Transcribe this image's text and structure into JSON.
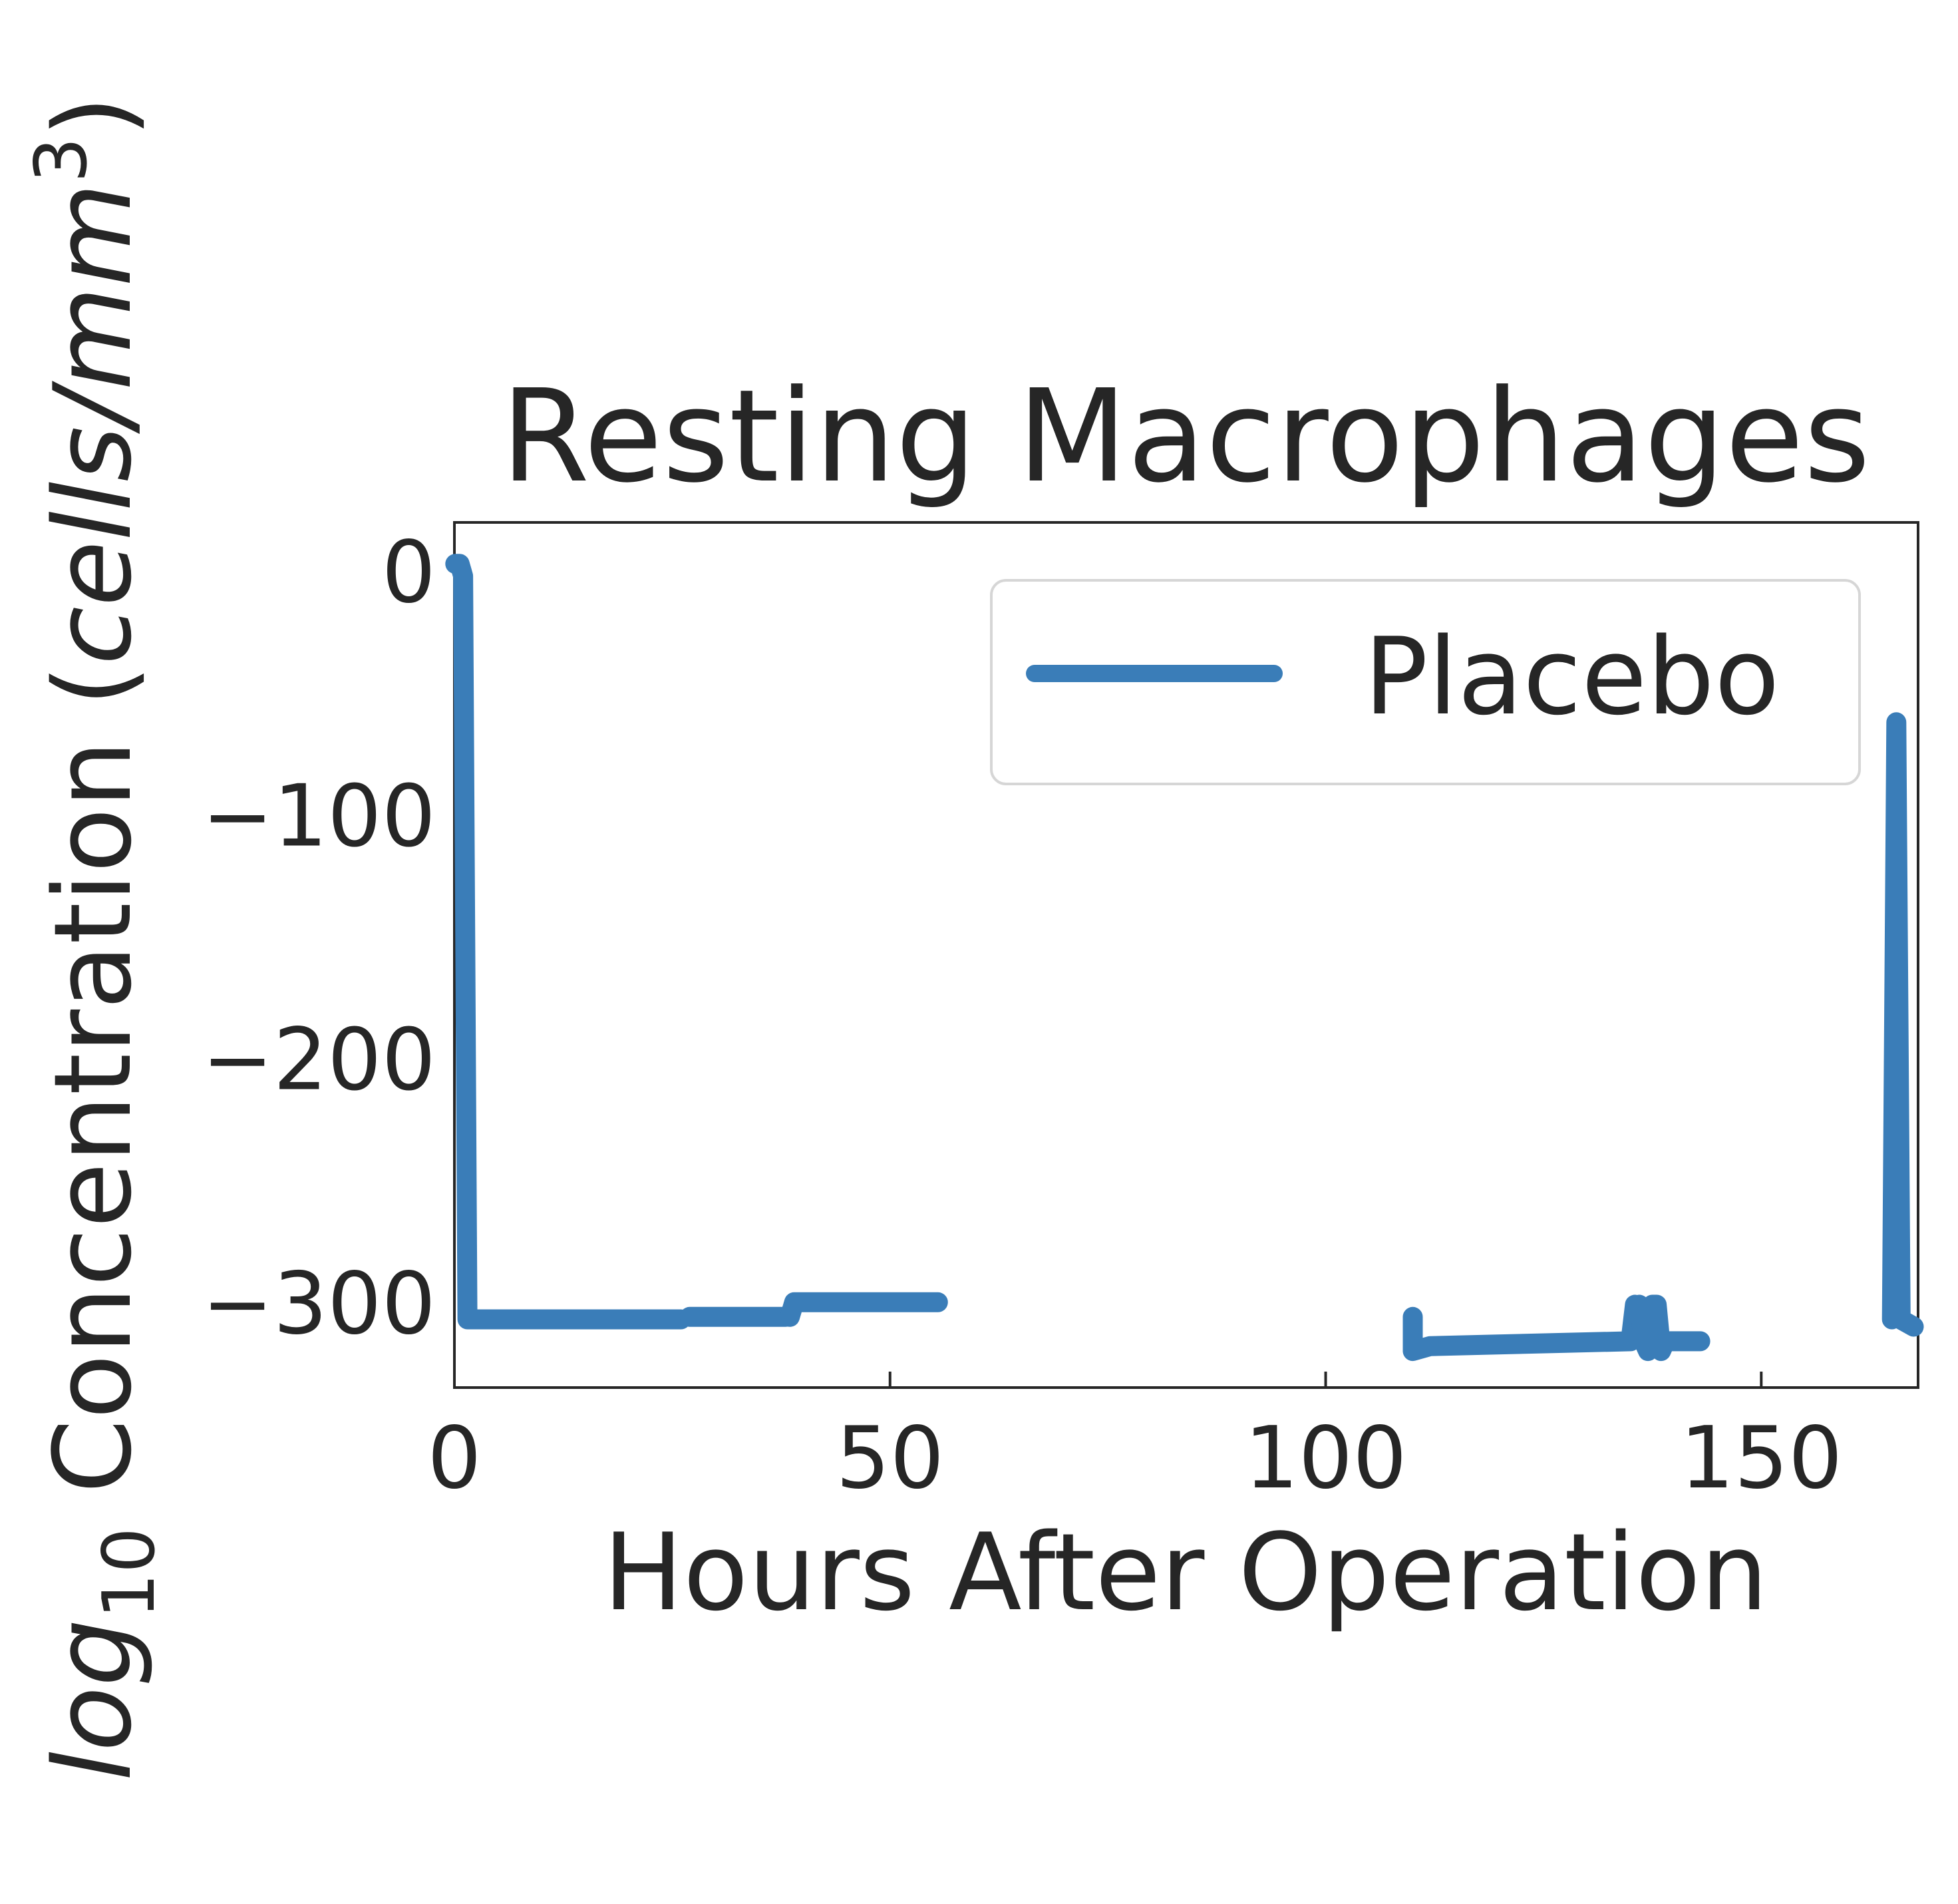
{
  "chart_data": {
    "type": "line",
    "title": "Resting Macrophages",
    "xlabel": "Hours After Operation",
    "ylabel": {
      "prefix": "log",
      "subscript": "10",
      "middle": " Concentration (",
      "unit_base": "cells/mm",
      "unit_exponent": "3",
      "suffix": ")"
    },
    "xlim": [
      0,
      168
    ],
    "ylim": [
      -335,
      20
    ],
    "x_ticks": [
      {
        "value": 0,
        "label": "0"
      },
      {
        "value": 50,
        "label": "50"
      },
      {
        "value": 100,
        "label": "100"
      },
      {
        "value": 150,
        "label": "150"
      }
    ],
    "y_ticks": [
      {
        "value": 0,
        "label": "0"
      },
      {
        "value": -100,
        "label": "−100"
      },
      {
        "value": -200,
        "label": "−200"
      },
      {
        "value": -300,
        "label": "−300"
      }
    ],
    "grid": false,
    "legend": {
      "position": "top-right",
      "entries": [
        "Placebo"
      ]
    },
    "series": [
      {
        "name": "Placebo",
        "color": "#3a7db8",
        "segments": [
          [
            [
              0.1,
              3
            ],
            [
              0.6,
              3
            ],
            [
              1,
              -2
            ],
            [
              1.5,
              -307
            ],
            [
              26,
              -307
            ]
          ],
          [
            [
              27,
              -306
            ],
            [
              38,
              -306
            ]
          ],
          [
            [
              38.5,
              -306
            ],
            [
              39,
              -300
            ],
            [
              55.5,
              -300
            ]
          ],
          [
            [
              110,
              -306
            ],
            [
              110,
              -320
            ],
            [
              112,
              -318
            ],
            [
              135,
              -316
            ],
            [
              135.5,
              -301
            ]
          ],
          [
            [
              136,
              -301
            ],
            [
              136.5,
              -316
            ],
            [
              137,
              -320
            ],
            [
              137.5,
              -301
            ],
            [
              138,
              -301
            ],
            [
              138.5,
              -320
            ],
            [
              139,
              -316
            ],
            [
              143,
              -316
            ]
          ],
          [
            [
              165,
              -307
            ],
            [
              165.5,
              -62
            ],
            [
              166,
              -307
            ],
            [
              167.5,
              -310
            ]
          ]
        ]
      }
    ]
  }
}
